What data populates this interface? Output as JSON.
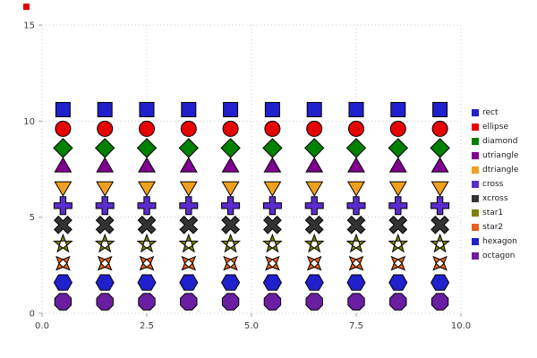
{
  "chart_data": {
    "type": "scatter",
    "title": "",
    "xlabel": "",
    "ylabel": "",
    "x": [
      0.5,
      1.5,
      2.5,
      3.5,
      4.5,
      5.5,
      6.5,
      7.5,
      8.5,
      9.5
    ],
    "series": [
      {
        "name": "rect",
        "shape": "rect",
        "color": "#2020cc",
        "y": 10.6
      },
      {
        "name": "ellipse",
        "shape": "ellipse",
        "color": "#e60000",
        "y": 9.6
      },
      {
        "name": "diamond",
        "shape": "diamond",
        "color": "#008000",
        "y": 8.6
      },
      {
        "name": "utriangle",
        "shape": "utriangle",
        "color": "#800090",
        "y": 7.6
      },
      {
        "name": "dtriangle",
        "shape": "dtriangle",
        "color": "#f0a01e",
        "y": 6.6
      },
      {
        "name": "cross",
        "shape": "cross",
        "color": "#5a2ccc",
        "y": 5.6
      },
      {
        "name": "xcross",
        "shape": "xcross",
        "color": "#333333",
        "y": 4.6
      },
      {
        "name": "star1",
        "shape": "star1",
        "color": "#808000",
        "y": 3.6
      },
      {
        "name": "star2",
        "shape": "star2",
        "color": "#e8601c",
        "y": 2.6
      },
      {
        "name": "hexagon",
        "shape": "hexagon",
        "color": "#2020cc",
        "y": 1.6
      },
      {
        "name": "octagon",
        "shape": "octagon",
        "color": "#6a1fa2",
        "y": 0.6
      }
    ],
    "xlim": [
      0,
      10
    ],
    "ylim": [
      0,
      15
    ],
    "xticks": {
      "values": [
        0,
        2.5,
        5,
        7.5,
        10
      ],
      "labels": [
        "0.0",
        "2.5",
        "5.0",
        "7.5",
        "10.0"
      ]
    },
    "yticks": {
      "values": [
        0,
        5,
        10,
        15
      ],
      "labels": [
        "0",
        "5",
        "10",
        "15"
      ]
    },
    "grid": true,
    "legend_position": "right",
    "style": {
      "grid_color": "#c8c8c8",
      "tick_color": "#a0a0a0",
      "tick_label_color": "#3d3d3d",
      "marker_outline": "#000000",
      "background": "#ffffff"
    }
  },
  "decor": {
    "corner_dot_color": "#e00000"
  }
}
